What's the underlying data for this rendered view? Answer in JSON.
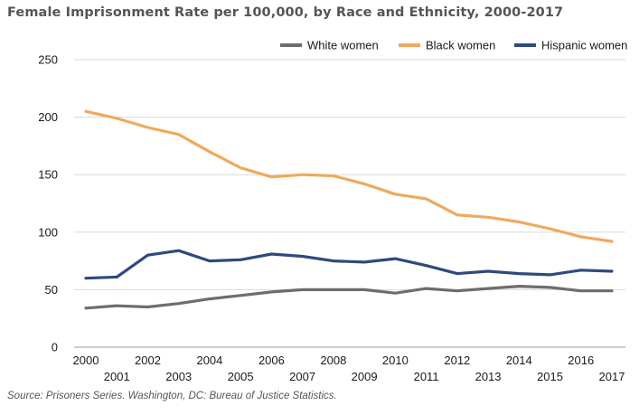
{
  "chart_data": {
    "type": "line",
    "title": "Female Imprisonment Rate per 100,000, by Race and Ethnicity, 2000-2017",
    "source": "Source: Prisoners Series. Washington, DC: Bureau of Justice Statistics.",
    "x": [
      "2000",
      "2001",
      "2002",
      "2003",
      "2004",
      "2005",
      "2006",
      "2007",
      "2008",
      "2009",
      "2010",
      "2011",
      "2012",
      "2013",
      "2014",
      "2015",
      "2016",
      "2017"
    ],
    "ylim": [
      0,
      250
    ],
    "yticks": [
      0,
      50,
      100,
      150,
      200,
      250
    ],
    "grid": true,
    "legend_position": "top-right",
    "series": [
      {
        "name": "White women",
        "color": "#6d6d6d",
        "values": [
          34,
          36,
          35,
          38,
          42,
          45,
          48,
          50,
          50,
          50,
          47,
          51,
          49,
          51,
          53,
          52,
          49,
          49
        ]
      },
      {
        "name": "Black women",
        "color": "#f0a95b",
        "values": [
          205,
          199,
          191,
          185,
          170,
          156,
          148,
          150,
          149,
          142,
          133,
          129,
          115,
          113,
          109,
          103,
          96,
          92
        ]
      },
      {
        "name": "Hispanic women",
        "color": "#2e4a7d",
        "values": [
          60,
          61,
          80,
          84,
          75,
          76,
          81,
          79,
          75,
          74,
          77,
          71,
          64,
          66,
          64,
          63,
          67,
          66
        ]
      }
    ]
  }
}
